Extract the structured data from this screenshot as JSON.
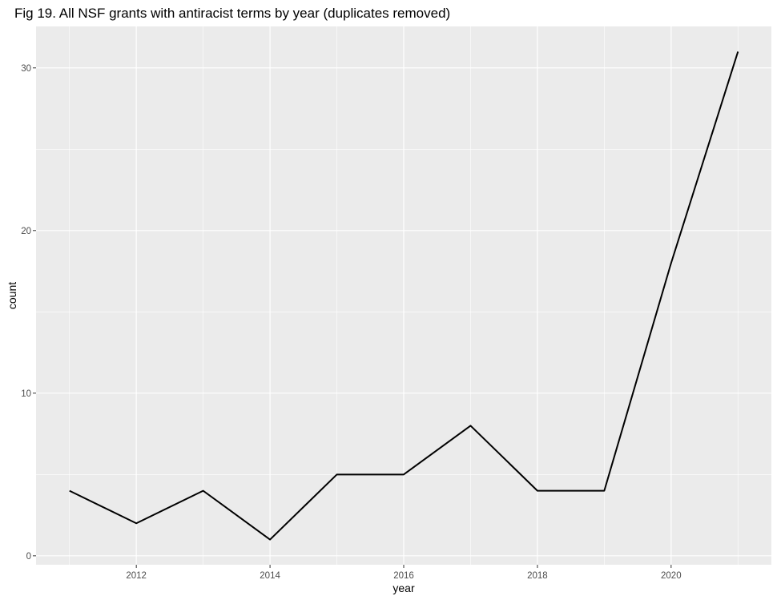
{
  "chart_data": {
    "type": "line",
    "title": "Fig 19. All NSF grants with antiracist terms by year (duplicates removed)",
    "xlabel": "year",
    "ylabel": "count",
    "x": [
      2011,
      2012,
      2013,
      2014,
      2015,
      2016,
      2017,
      2018,
      2019,
      2020,
      2021
    ],
    "series": [
      {
        "values": [
          4,
          2,
          4,
          1,
          5,
          5,
          8,
          4,
          4,
          18,
          31
        ]
      }
    ],
    "xlim": [
      2010.5,
      2021.5
    ],
    "ylim": [
      -0.55,
      32.55
    ],
    "xticks": [
      2012,
      2014,
      2016,
      2018,
      2020
    ],
    "yticks": [
      0,
      10,
      20,
      30
    ],
    "grid": true,
    "legend": "none",
    "colors": {
      "panel": "#EBEBEB",
      "grid": "#FFFFFF",
      "line": "#000000",
      "tick_text": "#4D4D4D",
      "tick_mark": "#333333"
    }
  }
}
